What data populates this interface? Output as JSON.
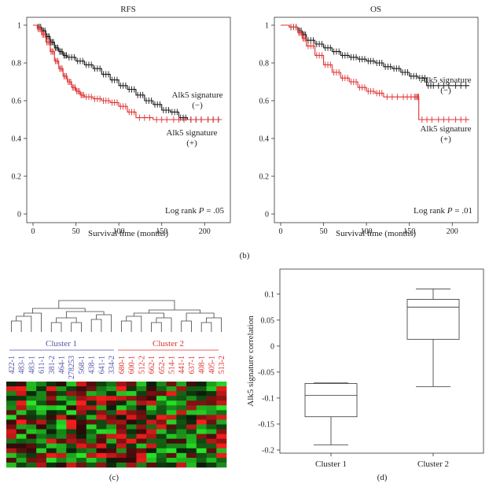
{
  "figure_labels": {
    "b": "(b)",
    "c": "(c)",
    "d": "(d)"
  },
  "chart_data": [
    {
      "type": "line",
      "panel": "RFS",
      "title": "RFS",
      "xlabel": "Survival time (months)",
      "ylabel": "",
      "xlim": [
        0,
        230
      ],
      "ylim": [
        0,
        1
      ],
      "xticks": [
        0,
        50,
        100,
        150,
        200
      ],
      "yticks": [
        0,
        0.2,
        0.4,
        0.6,
        0.8,
        1
      ],
      "ytick_labels": [
        "0",
        "0.2",
        "0.4",
        "0.6",
        "0.8",
        "1"
      ],
      "annotation": {
        "prefix": "Log rank ",
        "p": "P",
        "value": " = .05"
      },
      "series": [
        {
          "label_line1": "Alk5 signature",
          "label_line2": "(−)",
          "color": "#1a1a1a",
          "x": [
            0,
            5,
            10,
            15,
            20,
            25,
            30,
            35,
            40,
            50,
            60,
            70,
            80,
            90,
            100,
            110,
            120,
            130,
            140,
            150,
            160,
            170,
            180,
            200,
            220
          ],
          "y": [
            1.0,
            0.99,
            0.97,
            0.94,
            0.91,
            0.88,
            0.86,
            0.84,
            0.83,
            0.81,
            0.79,
            0.77,
            0.74,
            0.71,
            0.68,
            0.66,
            0.63,
            0.6,
            0.58,
            0.55,
            0.54,
            0.51,
            0.5,
            0.5,
            0.5
          ]
        },
        {
          "label_line1": "Alk5 signature",
          "label_line2": "(+)",
          "color": "#e03030",
          "x": [
            0,
            5,
            10,
            15,
            20,
            25,
            30,
            35,
            40,
            45,
            50,
            55,
            60,
            70,
            80,
            90,
            100,
            110,
            120,
            140,
            160,
            180,
            200,
            220
          ],
          "y": [
            1.0,
            0.98,
            0.95,
            0.91,
            0.86,
            0.81,
            0.77,
            0.73,
            0.7,
            0.67,
            0.65,
            0.63,
            0.62,
            0.61,
            0.6,
            0.59,
            0.57,
            0.54,
            0.51,
            0.5,
            0.5,
            0.5,
            0.5,
            0.5
          ]
        }
      ]
    },
    {
      "type": "line",
      "panel": "OS",
      "title": "OS",
      "xlabel": "Survival time (months)",
      "ylabel": "",
      "xlim": [
        0,
        230
      ],
      "ylim": [
        0,
        1
      ],
      "xticks": [
        0,
        50,
        100,
        150,
        200
      ],
      "yticks": [
        0,
        0.2,
        0.4,
        0.6,
        0.8,
        1
      ],
      "ytick_labels": [
        "0",
        "0.2",
        "0.4",
        "0.6",
        "0.8",
        "1"
      ],
      "annotation": {
        "prefix": "Log rank ",
        "p": "P",
        "value": " = .01"
      },
      "series": [
        {
          "label_line1": "Alk5 signature",
          "label_line2": "(−)",
          "color": "#1a1a1a",
          "x": [
            0,
            10,
            20,
            25,
            30,
            40,
            50,
            60,
            70,
            80,
            90,
            100,
            110,
            120,
            130,
            140,
            150,
            160,
            170,
            180,
            200,
            220
          ],
          "y": [
            1.0,
            0.99,
            0.97,
            0.95,
            0.92,
            0.9,
            0.88,
            0.86,
            0.84,
            0.83,
            0.82,
            0.81,
            0.8,
            0.78,
            0.77,
            0.75,
            0.73,
            0.72,
            0.68,
            0.68,
            0.68,
            0.68
          ]
        },
        {
          "label_line1": "Alk5 signature",
          "label_line2": "(+)",
          "color": "#e03030",
          "x": [
            0,
            10,
            20,
            25,
            30,
            40,
            50,
            60,
            70,
            80,
            90,
            100,
            110,
            120,
            140,
            155,
            160,
            161,
            180,
            200,
            220
          ],
          "y": [
            1.0,
            0.99,
            0.96,
            0.93,
            0.89,
            0.84,
            0.79,
            0.75,
            0.72,
            0.7,
            0.67,
            0.65,
            0.64,
            0.62,
            0.62,
            0.62,
            0.62,
            0.5,
            0.5,
            0.5,
            0.5
          ]
        }
      ]
    },
    {
      "type": "heatmap",
      "panel": "c",
      "clusters": [
        {
          "name": "Cluster 1",
          "color": "#5555aa",
          "samples": [
            "422-1",
            "483-1",
            "483-1",
            "611-1",
            "381-2",
            "464-1",
            "278253",
            "568-1",
            "438-1",
            "641-1",
            "334-2"
          ]
        },
        {
          "name": "Cluster 2",
          "color": "#e03030",
          "samples": [
            "680-1",
            "600-1",
            "512-2",
            "662-1",
            "652-1",
            "514-1",
            "441-1",
            "637-1",
            "408-1",
            "405-1",
            "513-2"
          ]
        }
      ],
      "rows": 18
    },
    {
      "type": "box",
      "panel": "d",
      "title": "",
      "xlabel": "",
      "ylabel": "Alk5 signature correlation",
      "ylim": [
        -0.2,
        0.13
      ],
      "yticks": [
        -0.2,
        -0.15,
        -0.1,
        -0.05,
        0,
        0.05,
        0.1
      ],
      "ytick_labels": [
        "-0.2",
        "-0.15",
        "-0.1",
        "-0.05",
        "0",
        "0.05",
        "0.1"
      ],
      "categories": [
        "Cluster 1",
        "Cluster 2"
      ],
      "boxes": [
        {
          "min": -0.19,
          "q1": -0.136,
          "median": -0.095,
          "q3": -0.072,
          "max": -0.071
        },
        {
          "min": -0.078,
          "q1": 0.013,
          "median": 0.075,
          "q3": 0.09,
          "max": 0.11
        }
      ]
    }
  ]
}
